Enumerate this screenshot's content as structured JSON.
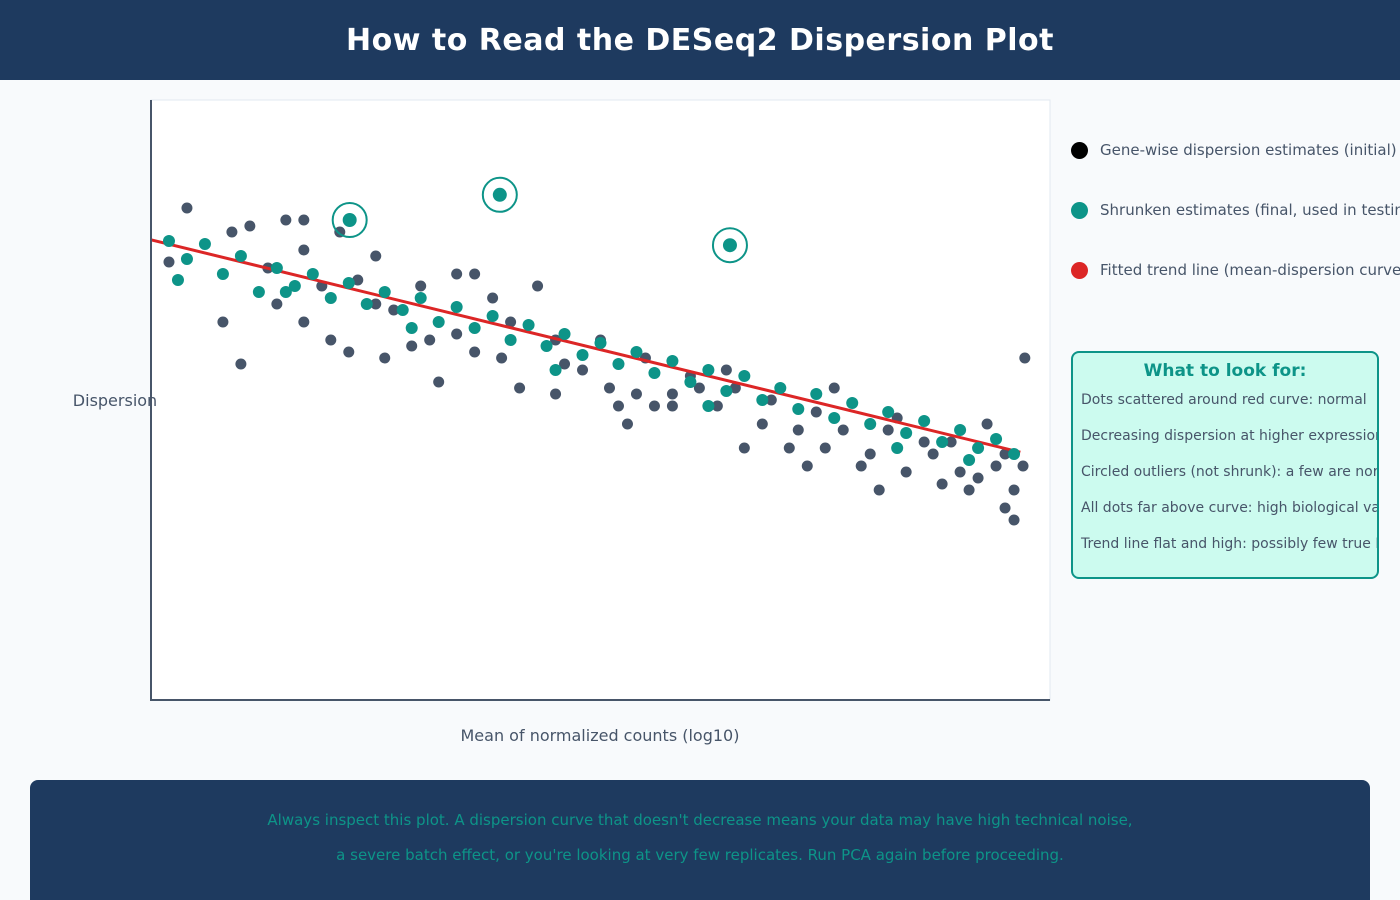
{
  "header": {
    "title": "How to Read the DESeq2 Dispersion Plot"
  },
  "legend": [
    {
      "label": "Gene-wise dispersion estimates (initial)",
      "color": "#000000"
    },
    {
      "label": "Shrunken estimates (final, used in testing)",
      "color": "#0d9488"
    },
    {
      "label": "Fitted trend line (mean-dispersion curve)",
      "color": "#dc2626"
    }
  ],
  "tips": {
    "title": "What to look for:",
    "items": [
      "Dots scattered around red curve: normal",
      "Decreasing dispersion at higher expression",
      "Circled outliers (not shrunk): a few are normal",
      "All dots far above curve: high biological variability",
      "Trend line flat and high: possibly few true DE genes"
    ]
  },
  "footer": {
    "line1": "Always inspect this plot. A dispersion curve that doesn't decrease means your data may have high technical noise,",
    "line2": "a severe batch effect, or you're looking at very few replicates. Run PCA again before proceeding."
  },
  "chart_data": {
    "type": "scatter",
    "title": "",
    "xlabel": "Mean of normalized counts (log10)",
    "ylabel": "Dispersion",
    "xlim": [
      0,
      10
    ],
    "ylim": [
      0,
      10
    ],
    "ticks_shown": false,
    "grid": false,
    "legend_position": "right",
    "colors": {
      "genewise": "#475569",
      "shrunken": "#0d9488",
      "trend": "#dc2626",
      "outlier_ring": "#0d9488"
    },
    "trend_line": [
      [
        0,
        7.67
      ],
      [
        9.67,
        4.13
      ]
    ],
    "outliers": [
      [
        2.21,
        8.0
      ],
      [
        3.88,
        8.42
      ],
      [
        6.44,
        7.58
      ]
    ],
    "genewise": [
      [
        0.2,
        7.3
      ],
      [
        0.4,
        8.2
      ],
      [
        0.6,
        7.6
      ],
      [
        0.8,
        6.3
      ],
      [
        0.9,
        7.8
      ],
      [
        1.0,
        5.6
      ],
      [
        1.1,
        7.9
      ],
      [
        1.2,
        6.8
      ],
      [
        1.3,
        7.2
      ],
      [
        1.4,
        6.6
      ],
      [
        1.5,
        8.0
      ],
      [
        1.7,
        7.5
      ],
      [
        1.7,
        6.3
      ],
      [
        1.9,
        6.9
      ],
      [
        2.0,
        6.0
      ],
      [
        2.1,
        7.8
      ],
      [
        2.2,
        5.8
      ],
      [
        2.3,
        7.0
      ],
      [
        2.5,
        6.6
      ],
      [
        2.5,
        7.4
      ],
      [
        2.7,
        6.5
      ],
      [
        2.9,
        5.9
      ],
      [
        3.0,
        6.9
      ],
      [
        3.1,
        6.0
      ],
      [
        3.2,
        5.3
      ],
      [
        3.4,
        6.1
      ],
      [
        3.6,
        7.1
      ],
      [
        3.6,
        5.8
      ],
      [
        3.8,
        6.7
      ],
      [
        3.9,
        5.7
      ],
      [
        4.0,
        6.3
      ],
      [
        4.1,
        5.2
      ],
      [
        4.3,
        6.9
      ],
      [
        4.5,
        6.0
      ],
      [
        4.5,
        5.1
      ],
      [
        4.6,
        5.6
      ],
      [
        4.8,
        5.5
      ],
      [
        5.0,
        6.0
      ],
      [
        5.1,
        5.2
      ],
      [
        5.2,
        4.9
      ],
      [
        5.3,
        4.6
      ],
      [
        5.4,
        5.1
      ],
      [
        5.5,
        5.7
      ],
      [
        5.6,
        4.9
      ],
      [
        5.8,
        5.1
      ],
      [
        5.8,
        4.9
      ],
      [
        6.0,
        5.4
      ],
      [
        6.1,
        5.2
      ],
      [
        6.3,
        4.9
      ],
      [
        6.4,
        5.5
      ],
      [
        6.5,
        5.2
      ],
      [
        6.6,
        4.2
      ],
      [
        6.8,
        4.6
      ],
      [
        6.9,
        5.0
      ],
      [
        7.1,
        4.2
      ],
      [
        7.2,
        4.5
      ],
      [
        7.3,
        3.9
      ],
      [
        7.4,
        4.8
      ],
      [
        7.5,
        4.2
      ],
      [
        7.6,
        5.2
      ],
      [
        7.7,
        4.5
      ],
      [
        7.9,
        3.9
      ],
      [
        8.0,
        4.1
      ],
      [
        8.1,
        3.5
      ],
      [
        8.2,
        4.5
      ],
      [
        8.3,
        4.7
      ],
      [
        8.4,
        3.8
      ],
      [
        8.6,
        4.3
      ],
      [
        8.7,
        4.1
      ],
      [
        8.8,
        3.6
      ],
      [
        8.9,
        4.3
      ],
      [
        9.0,
        3.8
      ],
      [
        9.1,
        3.5
      ],
      [
        9.2,
        3.7
      ],
      [
        9.3,
        4.6
      ],
      [
        9.4,
        3.9
      ],
      [
        9.5,
        3.2
      ],
      [
        9.6,
        3.0
      ],
      [
        9.7,
        3.9
      ],
      [
        9.6,
        3.5
      ],
      [
        9.5,
        4.1
      ],
      [
        9.72,
        5.7
      ],
      [
        1.7,
        8.0
      ],
      [
        2.6,
        5.7
      ],
      [
        3.4,
        7.1
      ]
    ],
    "shrunken": [
      [
        0.2,
        7.65
      ],
      [
        0.4,
        7.35
      ],
      [
        0.6,
        7.6
      ],
      [
        0.8,
        7.1
      ],
      [
        1.0,
        7.4
      ],
      [
        1.2,
        6.8
      ],
      [
        1.4,
        7.2
      ],
      [
        1.6,
        6.9
      ],
      [
        1.8,
        7.1
      ],
      [
        2.0,
        6.7
      ],
      [
        2.2,
        6.95
      ],
      [
        2.4,
        6.6
      ],
      [
        2.6,
        6.8
      ],
      [
        2.8,
        6.5
      ],
      [
        3.0,
        6.7
      ],
      [
        3.2,
        6.3
      ],
      [
        3.4,
        6.55
      ],
      [
        3.6,
        6.2
      ],
      [
        3.8,
        6.4
      ],
      [
        4.0,
        6.0
      ],
      [
        4.2,
        6.25
      ],
      [
        4.4,
        5.9
      ],
      [
        4.6,
        6.1
      ],
      [
        4.8,
        5.75
      ],
      [
        5.0,
        5.95
      ],
      [
        5.2,
        5.6
      ],
      [
        5.4,
        5.8
      ],
      [
        5.6,
        5.45
      ],
      [
        5.8,
        5.65
      ],
      [
        6.0,
        5.3
      ],
      [
        6.2,
        5.5
      ],
      [
        6.4,
        5.15
      ],
      [
        6.6,
        5.4
      ],
      [
        6.8,
        5.0
      ],
      [
        7.0,
        5.2
      ],
      [
        7.2,
        4.85
      ],
      [
        7.4,
        5.1
      ],
      [
        7.6,
        4.7
      ],
      [
        7.8,
        4.95
      ],
      [
        8.0,
        4.6
      ],
      [
        8.2,
        4.8
      ],
      [
        8.4,
        4.45
      ],
      [
        8.6,
        4.65
      ],
      [
        8.8,
        4.3
      ],
      [
        9.0,
        4.5
      ],
      [
        9.2,
        4.2
      ],
      [
        9.4,
        4.35
      ],
      [
        9.6,
        4.1
      ],
      [
        0.3,
        7.0
      ],
      [
        1.5,
        6.8
      ],
      [
        2.9,
        6.2
      ],
      [
        4.5,
        5.5
      ],
      [
        6.2,
        4.9
      ],
      [
        8.3,
        4.2
      ],
      [
        9.1,
        4.0
      ]
    ]
  }
}
